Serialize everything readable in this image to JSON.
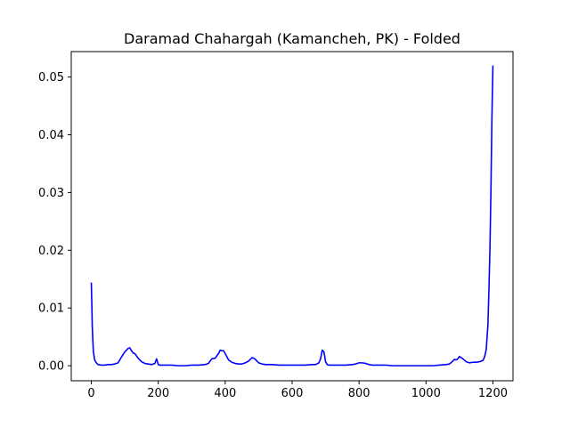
{
  "chart_data": {
    "type": "line",
    "title": "Daramad Chahargah (Kamancheh, PK) - Folded",
    "xlabel": "",
    "ylabel": "",
    "xlim": [
      -60,
      1260
    ],
    "ylim": [
      -0.0026,
      0.0544
    ],
    "xticks": [
      0,
      200,
      400,
      600,
      800,
      1000,
      1200
    ],
    "yticks": [
      0.0,
      0.01,
      0.02,
      0.03,
      0.04,
      0.05
    ],
    "xtick_labels": [
      "0",
      "200",
      "400",
      "600",
      "800",
      "1000",
      "1200"
    ],
    "ytick_labels": [
      "0.00",
      "0.01",
      "0.02",
      "0.03",
      "0.04",
      "0.05"
    ],
    "grid": false,
    "legend": "none",
    "series": [
      {
        "color": "#0000ff",
        "x": [
          0,
          3,
          6,
          10,
          15,
          20,
          30,
          40,
          50,
          60,
          70,
          80,
          90,
          100,
          110,
          115,
          120,
          125,
          130,
          140,
          150,
          160,
          170,
          180,
          190,
          195,
          200,
          205,
          210,
          220,
          240,
          260,
          280,
          300,
          320,
          340,
          350,
          360,
          370,
          380,
          385,
          390,
          395,
          400,
          410,
          420,
          430,
          440,
          450,
          460,
          470,
          480,
          485,
          490,
          500,
          510,
          520,
          540,
          560,
          580,
          600,
          620,
          640,
          660,
          670,
          680,
          685,
          690,
          695,
          700,
          705,
          710,
          720,
          740,
          760,
          780,
          790,
          800,
          810,
          820,
          830,
          840,
          860,
          880,
          900,
          920,
          940,
          960,
          980,
          1000,
          1020,
          1040,
          1060,
          1070,
          1080,
          1085,
          1090,
          1095,
          1100,
          1105,
          1110,
          1120,
          1130,
          1140,
          1150,
          1160,
          1170,
          1175,
          1180,
          1185,
          1188,
          1191,
          1194,
          1197,
          1200
        ],
        "y": [
          0.0144,
          0.0065,
          0.0025,
          0.001,
          0.0005,
          0.0002,
          0.0001,
          0.0001,
          0.0002,
          0.0002,
          0.0003,
          0.0005,
          0.0015,
          0.0024,
          0.003,
          0.0031,
          0.0026,
          0.0022,
          0.0021,
          0.0013,
          0.0007,
          0.0004,
          0.0003,
          0.0002,
          0.0004,
          0.0012,
          0.0002,
          0.0001,
          0.0001,
          0.0001,
          0.0001,
          0.0,
          0.0,
          0.0001,
          0.0001,
          0.0002,
          0.0004,
          0.0012,
          0.0013,
          0.0021,
          0.0027,
          0.0026,
          0.0026,
          0.0021,
          0.001,
          0.0006,
          0.0004,
          0.0003,
          0.0003,
          0.0005,
          0.0008,
          0.0014,
          0.0013,
          0.0011,
          0.0005,
          0.0003,
          0.0002,
          0.0002,
          0.0001,
          0.0001,
          0.0001,
          0.0001,
          0.0001,
          0.0002,
          0.0002,
          0.0005,
          0.0012,
          0.0027,
          0.0024,
          0.0007,
          0.0002,
          0.0001,
          0.0001,
          0.0001,
          0.0001,
          0.0002,
          0.0003,
          0.0005,
          0.0005,
          0.0004,
          0.0002,
          0.0001,
          0.0001,
          0.0001,
          0.0,
          0.0,
          0.0,
          0.0,
          0.0,
          0.0,
          0.0,
          0.0001,
          0.0002,
          0.0003,
          0.0008,
          0.0011,
          0.001,
          0.0012,
          0.0016,
          0.0014,
          0.0012,
          0.0007,
          0.0005,
          0.0006,
          0.0006,
          0.0007,
          0.0009,
          0.0015,
          0.0028,
          0.007,
          0.013,
          0.02,
          0.03,
          0.043,
          0.052
        ]
      }
    ]
  }
}
